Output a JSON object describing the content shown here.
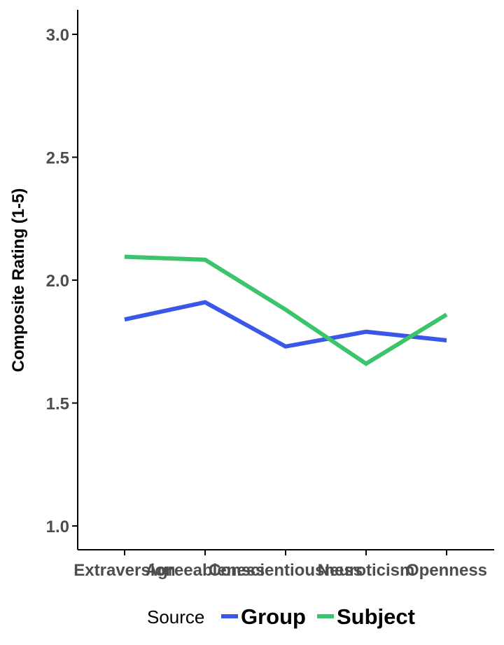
{
  "chart_data": {
    "type": "line",
    "categories": [
      "Extraversion",
      "Agreeableness",
      "Conscientiousness",
      "Neuroticism",
      "Openness"
    ],
    "series": [
      {
        "name": "Group",
        "color": "#3a57e8",
        "values": [
          1.84,
          1.91,
          1.73,
          1.79,
          1.755
        ]
      },
      {
        "name": "Subject",
        "color": "#3cc46a",
        "values": [
          2.095,
          2.083,
          1.88,
          1.66,
          1.86
        ]
      }
    ],
    "ylabel": "Composite Rating (1-5)",
    "ylim": [
      0.9,
      3.1
    ],
    "yticks": [
      "1.0",
      "1.5",
      "2.0",
      "2.5",
      "3.0"
    ],
    "grid": false,
    "legend": {
      "title": "Source",
      "position": "bottom"
    }
  }
}
